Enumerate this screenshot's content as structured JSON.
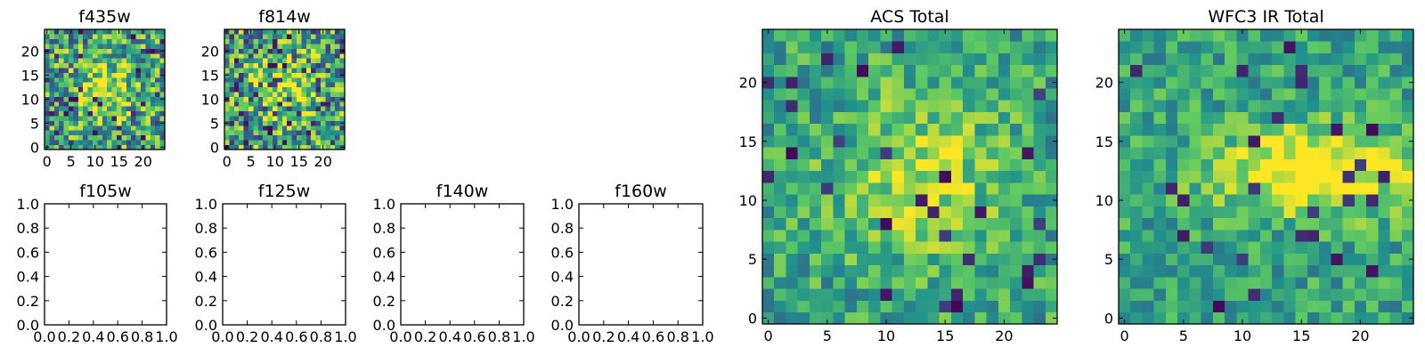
{
  "figure": {
    "background": "#ffffff",
    "colormap": "viridis",
    "colormap_stops": [
      "#440154",
      "#3b528b",
      "#21918c",
      "#5ec962",
      "#fde725"
    ]
  },
  "chart_data": [
    {
      "type": "heatmap",
      "title": "f435w",
      "grid_size": 25,
      "xticks": [
        "0",
        "5",
        "10",
        "15",
        "20"
      ],
      "yticks": [
        "0",
        "5",
        "10",
        "15",
        "20"
      ],
      "xlim": [
        -0.5,
        24.5
      ],
      "ylim": [
        -0.5,
        24.5
      ],
      "seed": 11,
      "noise": 0.75,
      "dark_fraction": 0.07,
      "center": [
        12,
        12
      ],
      "blob_sigma": [
        4,
        4
      ],
      "blob_strength": 0.35
    },
    {
      "type": "heatmap",
      "title": "f814w",
      "grid_size": 25,
      "xticks": [
        "0",
        "5",
        "10",
        "15",
        "20"
      ],
      "yticks": [
        "0",
        "5",
        "10",
        "15",
        "20"
      ],
      "xlim": [
        -0.5,
        24.5
      ],
      "ylim": [
        -0.5,
        24.5
      ],
      "seed": 23,
      "noise": 0.8,
      "dark_fraction": 0.08,
      "center": [
        12,
        12
      ],
      "blob_sigma": [
        4,
        4
      ],
      "blob_strength": 0.35
    },
    {
      "type": "empty",
      "title": "f105w",
      "xticks": [
        "0.0",
        "0.2",
        "0.4",
        "0.6",
        "0.8",
        "1.0"
      ],
      "yticks": [
        "0.0",
        "0.2",
        "0.4",
        "0.6",
        "0.8",
        "1.0"
      ],
      "xlim": [
        0,
        1
      ],
      "ylim": [
        0,
        1
      ]
    },
    {
      "type": "empty",
      "title": "f125w",
      "xticks": [
        "0.0",
        "0.2",
        "0.4",
        "0.6",
        "0.8",
        "1.0"
      ],
      "yticks": [
        "0.0",
        "0.2",
        "0.4",
        "0.6",
        "0.8",
        "1.0"
      ],
      "xlim": [
        0,
        1
      ],
      "ylim": [
        0,
        1
      ]
    },
    {
      "type": "empty",
      "title": "f140w",
      "xticks": [
        "0.0",
        "0.2",
        "0.4",
        "0.6",
        "0.8",
        "1.0"
      ],
      "yticks": [
        "0.0",
        "0.2",
        "0.4",
        "0.6",
        "0.8",
        "1.0"
      ],
      "xlim": [
        0,
        1
      ],
      "ylim": [
        0,
        1
      ]
    },
    {
      "type": "empty",
      "title": "f160w",
      "xticks": [
        "0.0",
        "0.2",
        "0.4",
        "0.6",
        "0.8",
        "1.0"
      ],
      "yticks": [
        "0.0",
        "0.2",
        "0.4",
        "0.6",
        "0.8",
        "1.0"
      ],
      "xlim": [
        0,
        1
      ],
      "ylim": [
        0,
        1
      ]
    },
    {
      "type": "heatmap",
      "title": "ACS Total",
      "grid_size": 25,
      "xticks": [
        "0",
        "5",
        "10",
        "15",
        "20"
      ],
      "yticks": [
        "0",
        "5",
        "10",
        "15",
        "20"
      ],
      "xlim": [
        -0.5,
        24.5
      ],
      "ylim": [
        -0.5,
        24.5
      ],
      "seed": 37,
      "noise": 0.45,
      "dark_fraction": 0.035,
      "center": [
        13,
        12
      ],
      "blob_sigma": [
        5,
        5
      ],
      "blob_strength": 0.3
    },
    {
      "type": "heatmap",
      "title": "WFC3 IR Total",
      "grid_size": 25,
      "xticks": [
        "0",
        "5",
        "10",
        "15",
        "20"
      ],
      "yticks": [
        "0",
        "5",
        "10",
        "15",
        "20"
      ],
      "xlim": [
        -0.5,
        24.5
      ],
      "ylim": [
        -0.5,
        24.5
      ],
      "seed": 51,
      "noise": 0.4,
      "dark_fraction": 0.04,
      "center": [
        16,
        12.5
      ],
      "blob_sigma": [
        6,
        2.5
      ],
      "blob_strength": 0.55
    }
  ]
}
